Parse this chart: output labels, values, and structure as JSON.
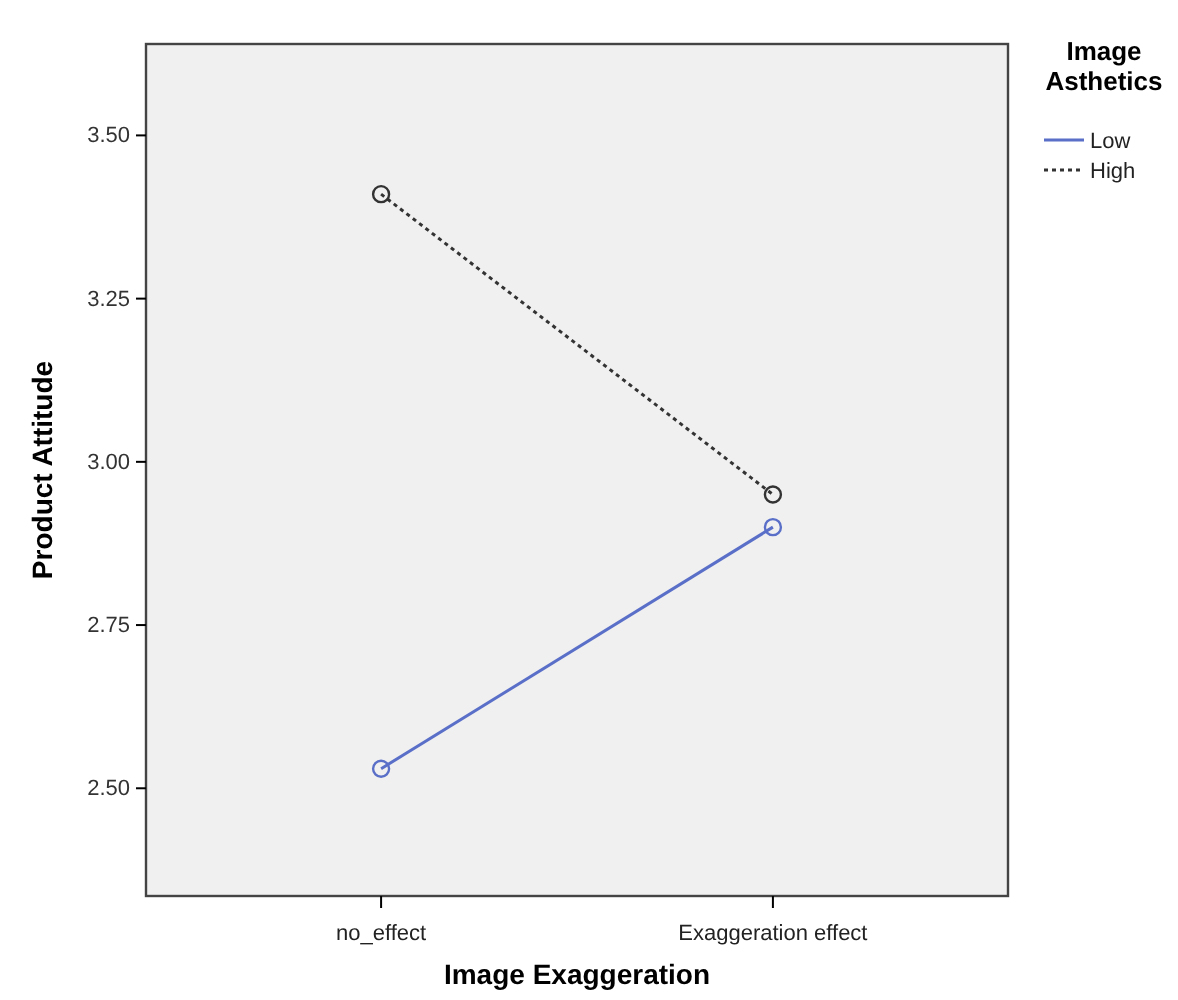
{
  "chart_data": {
    "type": "line",
    "xlabel": "Image Exaggeration",
    "ylabel": "Product Attitude",
    "legend_title": "Image Asthetics",
    "categories": [
      "no_effect",
      "Exaggeration effect"
    ],
    "series": [
      {
        "name": "Low",
        "color": "#5a6fc8",
        "values": [
          2.53,
          2.9
        ],
        "line_style": "solid"
      },
      {
        "name": "High",
        "color": "#333333",
        "values": [
          3.41,
          2.95
        ],
        "line_style": "dotted"
      }
    ],
    "ylim": [
      2.335,
      3.64
    ],
    "yticks": [
      {
        "value": 2.5,
        "label": "2.50"
      },
      {
        "value": 2.75,
        "label": "2.75"
      },
      {
        "value": 3,
        "label": "3.00"
      },
      {
        "value": 3.25,
        "label": "3.25"
      },
      {
        "value": 3.5,
        "label": "3.50"
      }
    ],
    "marker": "circle",
    "legend": "right",
    "grid": false
  }
}
